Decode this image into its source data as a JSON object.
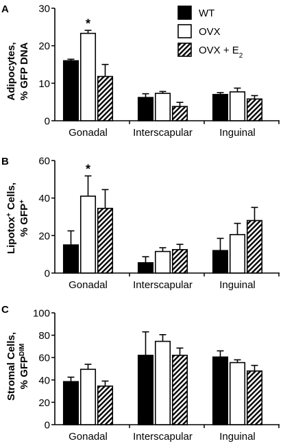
{
  "legend": {
    "placement": "top-right",
    "entries": [
      {
        "label": "WT",
        "sub": "",
        "pattern": "solid"
      },
      {
        "label": "OVX",
        "sub": "",
        "pattern": "open"
      },
      {
        "label": "OVX + E",
        "sub": "2",
        "pattern": "hatch"
      }
    ]
  },
  "chart_data": [
    {
      "type": "bar",
      "panel": "A",
      "ylabel_lines": [
        "Adipocytes,",
        "% GFP DNA"
      ],
      "ylim": [
        0,
        30
      ],
      "yticks": [
        "0",
        "10",
        "20",
        "30"
      ],
      "categories": [
        "Gonadal",
        "Interscapular",
        "Inguinal"
      ],
      "series": [
        {
          "name": "WT",
          "values": [
            16,
            6.2,
            7
          ],
          "errors": [
            0.4,
            1.0,
            0.5
          ]
        },
        {
          "name": "OVX",
          "values": [
            23.3,
            7.3,
            7.7
          ],
          "errors": [
            0.8,
            0.5,
            1.0
          ]
        },
        {
          "name": "OVX + E2",
          "values": [
            11.8,
            3.8,
            5.8
          ],
          "errors": [
            3.2,
            1.1,
            0.9
          ]
        }
      ],
      "annotations": [
        {
          "text": "*",
          "category": 0,
          "series": 1
        }
      ]
    },
    {
      "type": "bar",
      "panel": "B",
      "ylim": [
        0,
        60
      ],
      "yticks": [
        "0",
        "20",
        "40",
        "60"
      ],
      "categories": [
        "Gonadal",
        "Interscapular",
        "Inguinal"
      ],
      "series": [
        {
          "name": "WT",
          "values": [
            15,
            5.5,
            12
          ],
          "errors": [
            7.5,
            3.2,
            6.5
          ]
        },
        {
          "name": "OVX",
          "values": [
            41,
            11.5,
            20.5
          ],
          "errors": [
            10.8,
            2.0,
            6.0
          ]
        },
        {
          "name": "OVX + E2",
          "values": [
            34.5,
            12.5,
            28
          ],
          "errors": [
            10.0,
            2.8,
            7.0
          ]
        }
      ],
      "annotations": [
        {
          "text": "*",
          "category": 0,
          "series": 1
        }
      ]
    },
    {
      "type": "bar",
      "panel": "C",
      "ylim": [
        0,
        100
      ],
      "yticks": [
        "0",
        "20",
        "40",
        "60",
        "80",
        "100"
      ],
      "categories": [
        "Gonadal",
        "Interscapular",
        "Inguinal"
      ],
      "series": [
        {
          "name": "WT",
          "values": [
            38.5,
            62,
            60.5
          ],
          "errors": [
            4.0,
            21.0,
            5.5
          ]
        },
        {
          "name": "OVX",
          "values": [
            49.5,
            74.5,
            55.5
          ],
          "errors": [
            4.5,
            6.0,
            2.5
          ]
        },
        {
          "name": "OVX + E2",
          "values": [
            34.5,
            62,
            48
          ],
          "errors": [
            4.5,
            6.5,
            5.0
          ]
        }
      ],
      "annotations": []
    }
  ]
}
